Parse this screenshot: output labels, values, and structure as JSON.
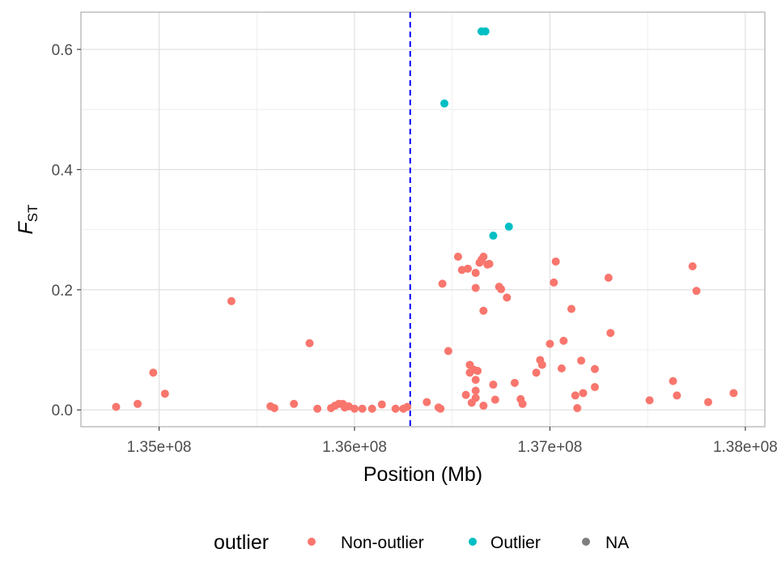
{
  "chart_data": {
    "type": "scatter",
    "xlabel": "Position (Mb)",
    "ylabel": "F",
    "ylabel_sub": "ST",
    "xlim": [
      134600000,
      138100000
    ],
    "ylim": [
      -0.028,
      0.662
    ],
    "x_ticks": [
      {
        "value": 135000000,
        "label": "1.35e+08"
      },
      {
        "value": 136000000,
        "label": "1.36e+08"
      },
      {
        "value": 137000000,
        "label": "1.37e+08"
      },
      {
        "value": 138000000,
        "label": "1.38e+08"
      }
    ],
    "y_ticks": [
      {
        "value": 0.0,
        "label": "0.0"
      },
      {
        "value": 0.2,
        "label": "0.2"
      },
      {
        "value": 0.4,
        "label": "0.4"
      },
      {
        "value": 0.6,
        "label": "0.6"
      }
    ],
    "reference_line": {
      "x": 136285000,
      "color": "#0000ff",
      "style": "dashed"
    },
    "grid": true,
    "legend": {
      "title": "outlier",
      "position": "bottom",
      "entries": [
        {
          "label": "Non-outlier",
          "color": "#F8766D"
        },
        {
          "label": "Outlier",
          "color": "#00BFC4"
        },
        {
          "label": "NA",
          "color": "#7F7F7F"
        }
      ]
    },
    "series": [
      {
        "name": "Non-outlier",
        "color": "#F8766D",
        "points": [
          [
            134780000,
            0.005
          ],
          [
            134890000,
            0.01
          ],
          [
            134970000,
            0.062
          ],
          [
            135030000,
            0.027
          ],
          [
            135370000,
            0.181
          ],
          [
            135570000,
            0.006
          ],
          [
            135590000,
            0.003
          ],
          [
            135690000,
            0.01
          ],
          [
            135770000,
            0.111
          ],
          [
            135810000,
            0.002
          ],
          [
            135880000,
            0.003
          ],
          [
            135900000,
            0.007
          ],
          [
            135920000,
            0.01
          ],
          [
            135940000,
            0.01
          ],
          [
            135950000,
            0.004
          ],
          [
            135970000,
            0.006
          ],
          [
            136000000,
            0.002
          ],
          [
            136040000,
            0.002
          ],
          [
            136090000,
            0.002
          ],
          [
            136140000,
            0.009
          ],
          [
            136210000,
            0.002
          ],
          [
            136250000,
            0.002
          ],
          [
            136270000,
            0.005
          ],
          [
            136370000,
            0.013
          ],
          [
            136430000,
            0.004
          ],
          [
            136440000,
            0.002
          ],
          [
            136450000,
            0.21
          ],
          [
            136480000,
            0.098
          ],
          [
            136530000,
            0.255
          ],
          [
            136550000,
            0.233
          ],
          [
            136570000,
            0.025
          ],
          [
            136580000,
            0.235
          ],
          [
            136590000,
            0.075
          ],
          [
            136590000,
            0.062
          ],
          [
            136600000,
            0.012
          ],
          [
            136610000,
            0.067
          ],
          [
            136620000,
            0.228
          ],
          [
            136620000,
            0.203
          ],
          [
            136620000,
            0.05
          ],
          [
            136620000,
            0.032
          ],
          [
            136620000,
            0.02
          ],
          [
            136630000,
            0.065
          ],
          [
            136640000,
            0.245
          ],
          [
            136650000,
            0.25
          ],
          [
            136660000,
            0.255
          ],
          [
            136660000,
            0.165
          ],
          [
            136660000,
            0.007
          ],
          [
            136680000,
            0.242
          ],
          [
            136690000,
            0.243
          ],
          [
            136710000,
            0.042
          ],
          [
            136720000,
            0.017
          ],
          [
            136740000,
            0.205
          ],
          [
            136750000,
            0.201
          ],
          [
            136780000,
            0.187
          ],
          [
            136820000,
            0.045
          ],
          [
            136850000,
            0.018
          ],
          [
            136860000,
            0.01
          ],
          [
            136930000,
            0.062
          ],
          [
            136950000,
            0.083
          ],
          [
            136960000,
            0.075
          ],
          [
            137000000,
            0.11
          ],
          [
            137020000,
            0.212
          ],
          [
            137030000,
            0.247
          ],
          [
            137060000,
            0.069
          ],
          [
            137070000,
            0.115
          ],
          [
            137110000,
            0.168
          ],
          [
            137130000,
            0.024
          ],
          [
            137140000,
            0.003
          ],
          [
            137160000,
            0.082
          ],
          [
            137170000,
            0.028
          ],
          [
            137230000,
            0.068
          ],
          [
            137230000,
            0.038
          ],
          [
            137300000,
            0.22
          ],
          [
            137310000,
            0.128
          ],
          [
            137510000,
            0.016
          ],
          [
            137630000,
            0.048
          ],
          [
            137650000,
            0.024
          ],
          [
            137730000,
            0.239
          ],
          [
            137750000,
            0.198
          ],
          [
            137810000,
            0.013
          ],
          [
            137940000,
            0.028
          ]
        ]
      },
      {
        "name": "Outlier",
        "color": "#00BFC4",
        "points": [
          [
            136460000,
            0.51
          ],
          [
            136650000,
            0.63
          ],
          [
            136670000,
            0.63
          ],
          [
            136710000,
            0.29
          ],
          [
            136790000,
            0.305
          ]
        ]
      }
    ]
  }
}
